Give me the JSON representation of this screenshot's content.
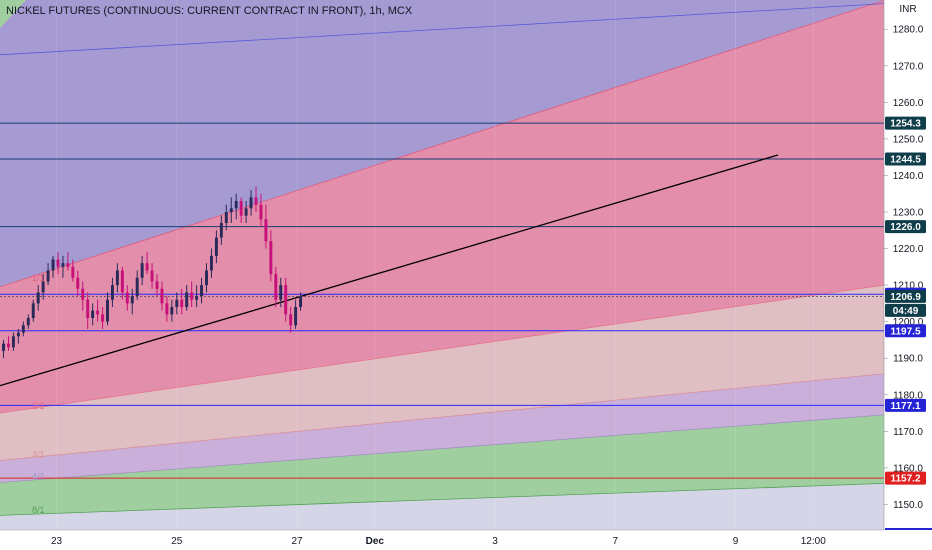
{
  "chart_data": {
    "type": "candlestick",
    "title": "NICKEL FUTURES (CONTINUOUS: CURRENT CONTRACT IN FRONT), 1h, MCX",
    "currency": "INR",
    "ylim": [
      1143,
      1288
    ],
    "y_ticks": [
      1150,
      1160,
      1170,
      1180,
      1190,
      1200,
      1210,
      1220,
      1230,
      1240,
      1250,
      1260,
      1270,
      1280
    ],
    "x_ticks": [
      {
        "label": "23",
        "x": 8,
        "bold": false
      },
      {
        "label": "25",
        "x": 25,
        "bold": false
      },
      {
        "label": "27",
        "x": 42,
        "bold": false
      },
      {
        "label": "Dec",
        "x": 53,
        "bold": true
      },
      {
        "label": "3",
        "x": 70,
        "bold": false
      },
      {
        "label": "7",
        "x": 87,
        "bold": false
      },
      {
        "label": "9",
        "x": 104,
        "bold": false
      },
      {
        "label": "12:00",
        "x": 115,
        "bold": false
      }
    ],
    "xlim": [
      0,
      125
    ],
    "last_price": 1206.9,
    "countdown": "04:49",
    "horizontal_levels": [
      {
        "value": 1254.3,
        "label": "1254.3",
        "color": "#1a3c74",
        "tag_color": "#0f3d4a"
      },
      {
        "value": 1244.5,
        "label": "1244.5",
        "color": "#1a3c74",
        "tag_color": "#0f3d4a"
      },
      {
        "value": 1226.0,
        "label": "1226.0",
        "color": "#1a3c74",
        "tag_color": "#0f3d4a"
      },
      {
        "value": 1207.5,
        "label": "1207.5",
        "color": "#2a2aff",
        "tag_color": "#2424d6"
      },
      {
        "value": 1197.5,
        "label": "1197.5",
        "color": "#2a2aff",
        "tag_color": "#2424d6"
      },
      {
        "value": 1177.1,
        "label": "1177.1",
        "color": "#2a2aff",
        "tag_color": "#2424d6"
      },
      {
        "value": 1157.2,
        "label": "1157.2",
        "color": "#e02020",
        "tag_color": "#e02020"
      }
    ],
    "trend_line": {
      "x1": 0,
      "y1": 1182.5,
      "x2": 110,
      "y2": 1245.6
    },
    "gann_fan": {
      "x0": 0,
      "lines": [
        {
          "name": "1/1",
          "y0": 1209.5,
          "slope": 0.627
        },
        {
          "name": "2/1",
          "y0": 1175,
          "slope": 0.28
        },
        {
          "name": "3/1",
          "y0": 1162,
          "slope": 0.19
        },
        {
          "name": "4/1",
          "y0": 1156,
          "slope": 0.148
        },
        {
          "name": "8/1",
          "y0": 1147,
          "slope": 0.07
        }
      ],
      "extra_top": {
        "y0": 1273,
        "slope": 0.112
      },
      "fill_colors": [
        "#a69ad2",
        "#e38eab",
        "#dfbec4",
        "#c9afd9",
        "#9fcf9f",
        "#d5d5e8"
      ],
      "label_colors": [
        "#e25a7a",
        "#e86f8a",
        "#d8909a",
        "#a090c0",
        "#55a055"
      ]
    },
    "candles": [
      [
        0.5,
        1192,
        1195,
        1190,
        1194
      ],
      [
        1.2,
        1194,
        1196,
        1192,
        1193
      ],
      [
        1.9,
        1193,
        1197,
        1192,
        1196
      ],
      [
        2.6,
        1196,
        1198,
        1194,
        1197
      ],
      [
        3.3,
        1197,
        1200,
        1196,
        1199
      ],
      [
        4.0,
        1199,
        1202,
        1198,
        1201
      ],
      [
        4.7,
        1201,
        1206,
        1200,
        1205
      ],
      [
        5.4,
        1205,
        1210,
        1203,
        1208
      ],
      [
        6.1,
        1208,
        1213,
        1206,
        1211
      ],
      [
        6.8,
        1211,
        1216,
        1210,
        1214
      ],
      [
        7.5,
        1214,
        1218,
        1212,
        1217
      ],
      [
        8.2,
        1217,
        1219,
        1213,
        1215
      ],
      [
        8.9,
        1215,
        1218,
        1212,
        1216
      ],
      [
        9.6,
        1216,
        1219,
        1214,
        1215
      ],
      [
        10.3,
        1215,
        1217,
        1211,
        1212
      ],
      [
        11.0,
        1212,
        1214,
        1207,
        1209
      ],
      [
        11.7,
        1209,
        1211,
        1203,
        1206
      ],
      [
        12.4,
        1206,
        1208,
        1198,
        1201
      ],
      [
        13.1,
        1201,
        1205,
        1199,
        1203
      ],
      [
        13.8,
        1203,
        1206,
        1200,
        1202
      ],
      [
        14.5,
        1202,
        1204,
        1198,
        1200
      ],
      [
        15.2,
        1200,
        1208,
        1199,
        1206
      ],
      [
        15.9,
        1206,
        1212,
        1204,
        1210
      ],
      [
        16.6,
        1210,
        1216,
        1208,
        1214
      ],
      [
        17.3,
        1214,
        1215,
        1206,
        1208
      ],
      [
        18.0,
        1208,
        1210,
        1203,
        1205
      ],
      [
        18.7,
        1205,
        1209,
        1202,
        1207
      ],
      [
        19.4,
        1207,
        1214,
        1206,
        1212
      ],
      [
        20.1,
        1212,
        1218,
        1210,
        1216
      ],
      [
        20.8,
        1216,
        1219,
        1213,
        1214
      ],
      [
        21.5,
        1214,
        1216,
        1209,
        1211
      ],
      [
        22.2,
        1211,
        1213,
        1207,
        1209
      ],
      [
        22.9,
        1209,
        1211,
        1203,
        1205
      ],
      [
        23.6,
        1205,
        1207,
        1200,
        1202
      ],
      [
        24.3,
        1202,
        1206,
        1200,
        1204
      ],
      [
        25.0,
        1204,
        1208,
        1202,
        1206
      ],
      [
        25.7,
        1206,
        1209,
        1202,
        1204
      ],
      [
        26.4,
        1204,
        1210,
        1203,
        1208
      ],
      [
        27.1,
        1208,
        1211,
        1204,
        1206
      ],
      [
        27.8,
        1206,
        1210,
        1204,
        1207
      ],
      [
        28.5,
        1207,
        1212,
        1205,
        1210
      ],
      [
        29.2,
        1210,
        1216,
        1208,
        1214
      ],
      [
        29.9,
        1214,
        1220,
        1212,
        1218
      ],
      [
        30.6,
        1218,
        1225,
        1216,
        1223
      ],
      [
        31.3,
        1223,
        1229,
        1221,
        1227
      ],
      [
        32.0,
        1227,
        1232,
        1225,
        1230
      ],
      [
        32.7,
        1230,
        1234,
        1227,
        1231
      ],
      [
        33.4,
        1231,
        1235,
        1228,
        1233
      ],
      [
        34.1,
        1233,
        1234,
        1227,
        1229
      ],
      [
        34.8,
        1229,
        1233,
        1227,
        1231
      ],
      [
        35.5,
        1231,
        1236,
        1229,
        1234
      ],
      [
        36.2,
        1234,
        1237,
        1230,
        1232
      ],
      [
        36.9,
        1232,
        1235,
        1226,
        1228
      ],
      [
        37.6,
        1228,
        1232,
        1220,
        1222
      ],
      [
        38.3,
        1222,
        1225,
        1211,
        1213
      ],
      [
        39.0,
        1213,
        1215,
        1204,
        1206
      ],
      [
        39.7,
        1206,
        1212,
        1204,
        1210
      ],
      [
        40.4,
        1210,
        1212,
        1200,
        1202
      ],
      [
        41.1,
        1202,
        1204,
        1197,
        1199
      ],
      [
        41.8,
        1199,
        1206,
        1198,
        1204
      ],
      [
        42.5,
        1204,
        1208,
        1203,
        1206.9
      ]
    ]
  }
}
